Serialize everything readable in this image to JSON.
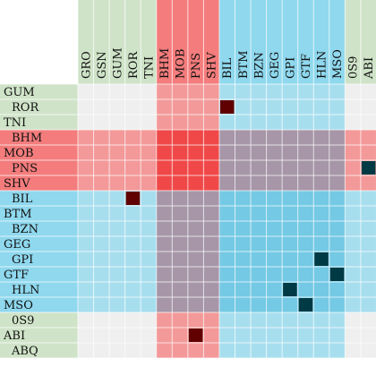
{
  "chart_data": {
    "type": "heatmap",
    "title": "",
    "columns": [
      "GRO",
      "GSN",
      "GUM",
      "ROR",
      "TNI",
      "BHM",
      "MOB",
      "PNS",
      "SHV",
      "BIL",
      "BTM",
      "BZN",
      "GEG",
      "GPI",
      "GTF",
      "HLN",
      "MSO",
      "0S9",
      "ABI"
    ],
    "rows": [
      "GUM",
      "ROR",
      "TNI",
      "BHM",
      "MOB",
      "PNS",
      "SHV",
      "BIL",
      "BTM",
      "BZN",
      "GEG",
      "GPI",
      "GTF",
      "HLN",
      "MSO",
      "0S9",
      "ABI",
      "ABQ"
    ],
    "groups": [
      {
        "members": [
          "GRO",
          "GSN",
          "GUM",
          "ROR",
          "TNI"
        ],
        "color": "#cfe3c8"
      },
      {
        "members": [
          "BHM",
          "MOB",
          "PNS",
          "SHV"
        ],
        "color": "#f47c7c"
      },
      {
        "members": [
          "BIL",
          "BTM",
          "BZN",
          "GEG",
          "GPI",
          "GTF",
          "HLN",
          "MSO"
        ],
        "color": "#8fd8ee"
      },
      {
        "members": [
          "0S9",
          "ABI",
          "ABQ"
        ],
        "color": "#cfe3c8"
      }
    ],
    "links": [
      {
        "row": "ROR",
        "col": "BIL",
        "group": "mixed"
      },
      {
        "row": "PNS",
        "col": "ABI",
        "group": "intra"
      },
      {
        "row": "BIL",
        "col": "ROR",
        "group": "mixed"
      },
      {
        "row": "GPI",
        "col": "HLN",
        "group": "intra"
      },
      {
        "row": "GTF",
        "col": "MSO",
        "group": "intra"
      },
      {
        "row": "HLN",
        "col": "GPI",
        "group": "intra"
      },
      {
        "row": "MSO",
        "col": "GTF",
        "group": "intra"
      },
      {
        "row": "ABI",
        "col": "PNS",
        "group": "mixed"
      }
    ],
    "link_colors": {
      "intra": "#003a44",
      "mixed": "#600000"
    },
    "grid": true,
    "legend": "none"
  }
}
